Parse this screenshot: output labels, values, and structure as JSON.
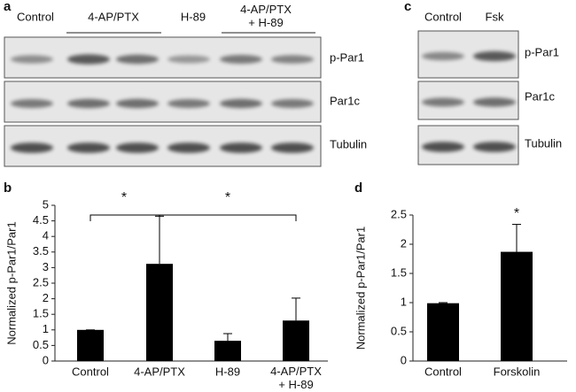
{
  "blots": [
    {
      "letter": "a",
      "lanes": [
        "Control",
        "4-AP/PTX",
        "H-89",
        "4-AP/PTX\n+ H-89"
      ],
      "rows": [
        "p-Par1",
        "Par1c",
        "Tubulin"
      ]
    },
    {
      "letter": "c",
      "lanes": [
        "Control",
        "Fsk"
      ],
      "rows": [
        "p-Par1",
        "Par1c",
        "Tubulin"
      ]
    }
  ],
  "chart_data": [
    {
      "type": "bar",
      "letter": "b",
      "y_label": "Normalized p-Par1/Par1",
      "categories": [
        "Control",
        "4-AP/PTX",
        "H-89",
        "4-AP/PTX\n+ H-89"
      ],
      "values": [
        1,
        3.12,
        0.65,
        1.3
      ],
      "errors": [
        0,
        1.53,
        0.23,
        0.72
      ],
      "color": "#000000",
      "ylim": [
        0,
        5
      ],
      "yticks": [
        0,
        0.5,
        1,
        1.5,
        2,
        2.5,
        3,
        3.5,
        4,
        4.5,
        5
      ],
      "annotations": [
        "*",
        "*"
      ]
    },
    {
      "type": "bar",
      "letter": "d",
      "y_label": "Normalized p-Par1/Par1",
      "categories": [
        "Control",
        "Forskolin"
      ],
      "values": [
        0.99,
        1.87
      ],
      "errors": [
        0.01,
        0.47
      ],
      "color": "#000000",
      "ylim": [
        0,
        2.5
      ],
      "yticks": [
        0,
        0.5,
        1,
        1.5,
        2,
        2.5
      ],
      "annotations": [
        "*"
      ]
    }
  ]
}
